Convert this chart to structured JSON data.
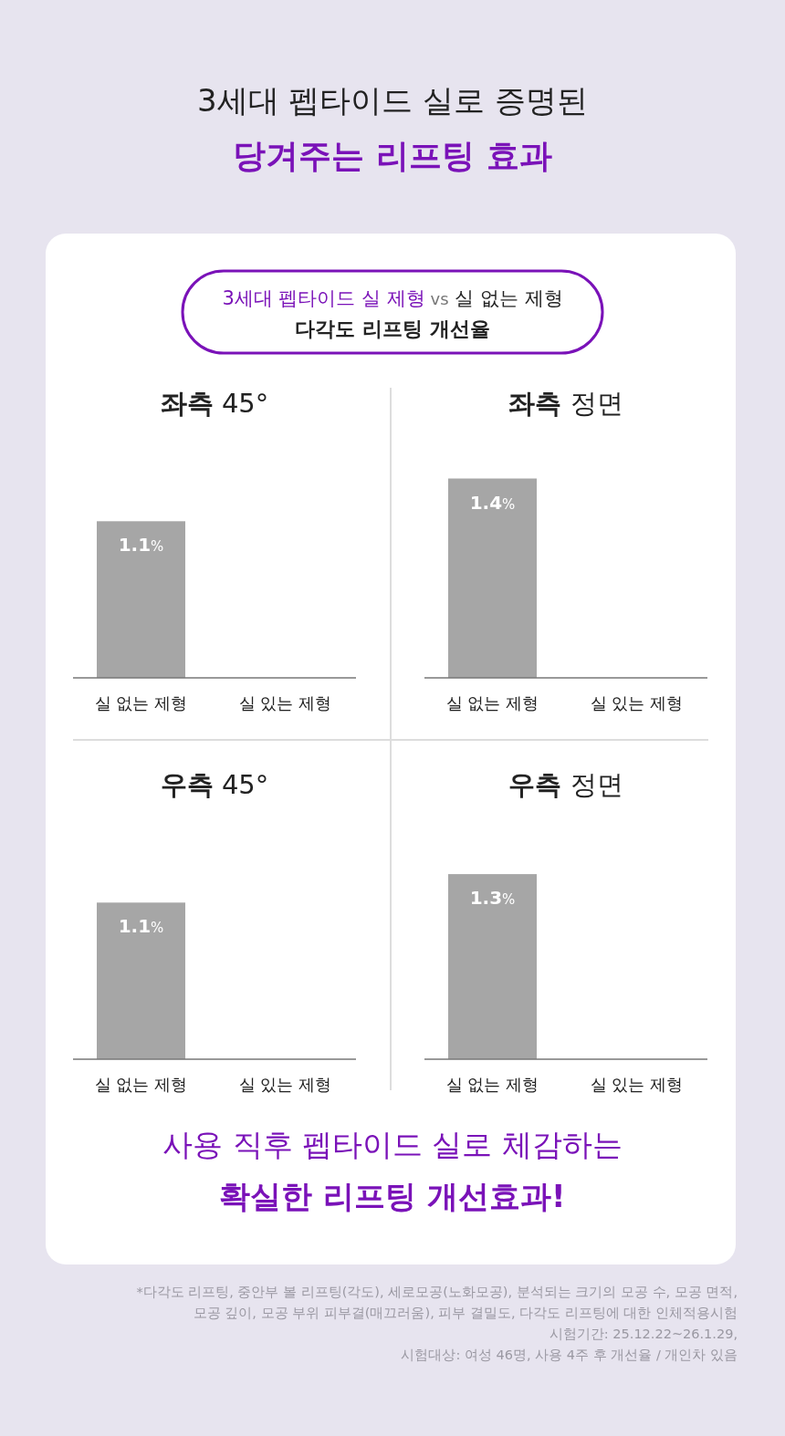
{
  "chart_data": [
    {
      "type": "other",
      "title": "3세대 펩타이드 실로 증명된",
      "subtitle": "당겨주는 리프팅 효과",
      "annotations": [
        "3세대 펩타이드 실 제형",
        "vs",
        "실 없는 제형",
        "다각도 리프팅 개선율"
      ]
    },
    {
      "type": "bar",
      "title": "**좌측** 45°",
      "categories": [
        "실 없는 제형",
        "실 있는 제형"
      ],
      "values": [
        1.1,
        null
      ],
      "value_labels": [
        "1.1%",
        null
      ],
      "color": "#a6a6a6"
    },
    {
      "type": "bar",
      "title": "**좌측** 정면",
      "categories": [
        "실 없는 제형",
        "실 있는 제형"
      ],
      "values": [
        1.4,
        null
      ],
      "value_labels": [
        "1.4%",
        null
      ],
      "color": "#a6a6a6"
    },
    {
      "type": "bar",
      "title": "**우측** 45°",
      "categories": [
        "실 없는 제형",
        "실 있는 제형"
      ],
      "values": [
        1.1,
        null
      ],
      "value_labels": [
        "1.1%",
        null
      ],
      "color": "#a6a6a6"
    },
    {
      "type": "bar",
      "title": "**우측** 정면",
      "categories": [
        "실 없는 제형",
        "실 있는 제형"
      ],
      "values": [
        1.3,
        null
      ],
      "value_labels": [
        "1.3%",
        null
      ],
      "color": "#a6a6a6"
    },
    {
      "type": "other",
      "title": "사용 직후  펩타이드 실로 체감하는",
      "subtitle": "확실한 리프팅 개선효과!",
      "annotations": [
        "*다각도 리프팅, 중안부 볼 리프팅(각도), 세로모공(노화모공), 분석되는 크기의 모공 수, 모공 면적,",
        "모공 깊이, 모공 부위 피부결(매끄러움), 피부 결밀도, 다각도 리프팅에 대한 인체적용시험",
        "시험기간: 25.12.22~26.1.29,",
        "시험대상: 여성 46명, 사용 4주 후 개선율 / 개인차 있음"
      ]
    }
  ]
}
